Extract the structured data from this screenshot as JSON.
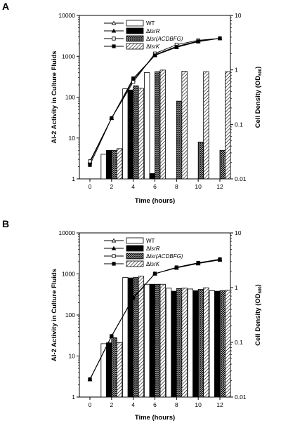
{
  "chart_data": [
    {
      "type": "bar",
      "panel_label": "A",
      "categories": [
        "0",
        "2",
        "4",
        "6",
        "8",
        "10",
        "12"
      ],
      "xlabel": "Time (hours)",
      "ylabel": "AI-2 Activity in Culture Fluids",
      "y2label": "Cell Density (OD600)",
      "y2label_main": "Cell Density (OD",
      "y2label_sub": "600",
      "y2label_end": ")",
      "ylim": [
        1,
        10000
      ],
      "y2lim": [
        0.01,
        10
      ],
      "yscale": "log",
      "y2scale": "log",
      "yticks": [
        "1",
        "10",
        "100",
        "1000",
        "10000"
      ],
      "y2ticks": [
        "0.01",
        "0.1",
        "1",
        "10"
      ],
      "legend_position": "top-left",
      "legend": [
        {
          "line_label": "WT",
          "marker": "open-triangle"
        },
        {
          "line_label": "ΔlsrR",
          "marker": "filled-triangle"
        },
        {
          "line_label": "Δlsr(ACDBFG)",
          "marker": "open-square"
        },
        {
          "line_label": "ΔlsrK",
          "marker": "filled-square"
        }
      ],
      "bar_series": [
        {
          "name": "WT",
          "fill": "white",
          "values": [
            null,
            4,
            160,
            400,
            null,
            null,
            null
          ]
        },
        {
          "name": "ΔlsrR",
          "fill": "black",
          "values": [
            null,
            5,
            150,
            1.35,
            null,
            null,
            null
          ]
        },
        {
          "name": "Δlsr(ACDBFG)",
          "fill": "crosshatch",
          "values": [
            null,
            5,
            190,
            420,
            80,
            8,
            5
          ]
        },
        {
          "name": "ΔlsrK",
          "fill": "diagonal",
          "values": [
            null,
            5.5,
            165,
            460,
            430,
            420,
            420
          ]
        }
      ],
      "line_x": [
        0,
        2,
        4,
        6,
        8,
        10,
        12
      ],
      "line_series": [
        {
          "name": "WT",
          "marker": "open-triangle",
          "values": [
            0.021,
            0.13,
            0.65,
            1.9,
            2.7,
            3.4,
            3.8
          ]
        },
        {
          "name": "ΔlsrR",
          "marker": "filled-triangle",
          "values": [
            0.02,
            0.13,
            0.66,
            1.85,
            2.6,
            3.3,
            3.8
          ]
        },
        {
          "name": "Δlsr(ACDBFG)",
          "marker": "open-square",
          "values": [
            0.021,
            0.13,
            0.6,
            2.0,
            2.9,
            3.5,
            3.8
          ]
        },
        {
          "name": "ΔlsrK",
          "marker": "filled-square",
          "values": [
            0.018,
            0.13,
            0.7,
            1.85,
            2.65,
            3.35,
            3.8
          ]
        }
      ]
    },
    {
      "type": "bar",
      "panel_label": "B",
      "categories": [
        "0",
        "2",
        "4",
        "6",
        "8",
        "10",
        "12"
      ],
      "xlabel": "Time (hours)",
      "ylabel": "AI-2 Activity in Culture Fluids",
      "y2label": "Cell Density (OD600)",
      "y2label_main": "Cell Density (OD",
      "y2label_sub": "600",
      "y2label_end": ")",
      "ylim": [
        1,
        10000
      ],
      "y2lim": [
        0.01,
        10
      ],
      "yscale": "log",
      "y2scale": "log",
      "yticks": [
        "1",
        "10",
        "100",
        "1000",
        "10000"
      ],
      "y2ticks": [
        "0.01",
        "0.1",
        "1",
        "10"
      ],
      "legend_position": "top-left",
      "legend": [
        {
          "line_label": "WT",
          "marker": "open-triangle"
        },
        {
          "line_label": "ΔlsrR",
          "marker": "filled-triangle"
        },
        {
          "line_label": "Δlsr(ACDBFG)",
          "marker": "open-square"
        },
        {
          "line_label": "ΔlsrK",
          "marker": "filled-square"
        }
      ],
      "bar_series": [
        {
          "name": "WT",
          "fill": "white",
          "values": [
            null,
            20,
            820,
            560,
            450,
            430,
            390
          ]
        },
        {
          "name": "ΔlsrR",
          "fill": "black",
          "values": [
            null,
            21,
            800,
            560,
            380,
            390,
            380
          ]
        },
        {
          "name": "Δlsr(ACDBFG)",
          "fill": "crosshatch",
          "values": [
            null,
            28,
            820,
            560,
            440,
            420,
            390
          ]
        },
        {
          "name": "ΔlsrK",
          "fill": "diagonal",
          "values": [
            null,
            21,
            880,
            560,
            450,
            460,
            400
          ]
        }
      ],
      "line_x": [
        0,
        2,
        4,
        6,
        8,
        10,
        12
      ],
      "line_series": [
        {
          "name": "WT",
          "marker": "open-triangle",
          "values": [
            0.021,
            0.13,
            0.65,
            1.8,
            2.3,
            2.8,
            3.3
          ]
        },
        {
          "name": "ΔlsrR",
          "marker": "filled-triangle",
          "values": [
            0.021,
            0.13,
            0.65,
            1.8,
            2.3,
            2.75,
            3.2
          ]
        },
        {
          "name": "Δlsr(ACDBFG)",
          "marker": "open-square",
          "values": [
            0.021,
            0.13,
            0.65,
            1.8,
            2.35,
            2.85,
            3.3
          ]
        },
        {
          "name": "ΔlsrK",
          "marker": "filled-square",
          "values": [
            0.021,
            0.13,
            0.65,
            1.8,
            2.3,
            2.8,
            3.25
          ]
        }
      ]
    }
  ]
}
